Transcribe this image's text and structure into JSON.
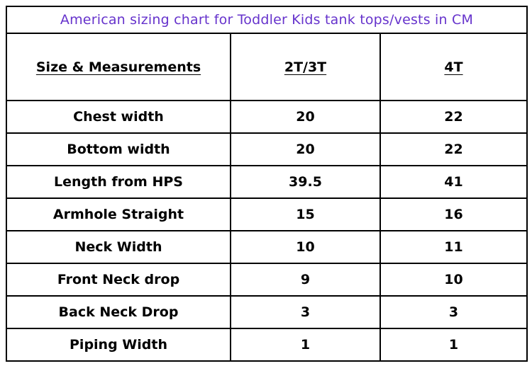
{
  "accent_color": "#6633cc",
  "chart_data": {
    "type": "table",
    "title": "American sizing chart for Toddler Kids tank tops/vests in CM",
    "columns": [
      "Size & Measurements",
      "2T/3T",
      "4T"
    ],
    "rows": [
      {
        "label": "Chest width",
        "values": [
          "20",
          "22"
        ]
      },
      {
        "label": "Bottom width",
        "values": [
          "20",
          "22"
        ]
      },
      {
        "label": "Length from HPS",
        "values": [
          "39.5",
          "41"
        ]
      },
      {
        "label": "Armhole Straight",
        "values": [
          "15",
          "16"
        ]
      },
      {
        "label": "Neck Width",
        "values": [
          "10",
          "11"
        ]
      },
      {
        "label": "Front Neck drop",
        "values": [
          "9",
          "10"
        ]
      },
      {
        "label": "Back Neck Drop",
        "values": [
          "3",
          "3"
        ]
      },
      {
        "label": "Piping Width",
        "values": [
          "1",
          "1"
        ]
      }
    ]
  }
}
